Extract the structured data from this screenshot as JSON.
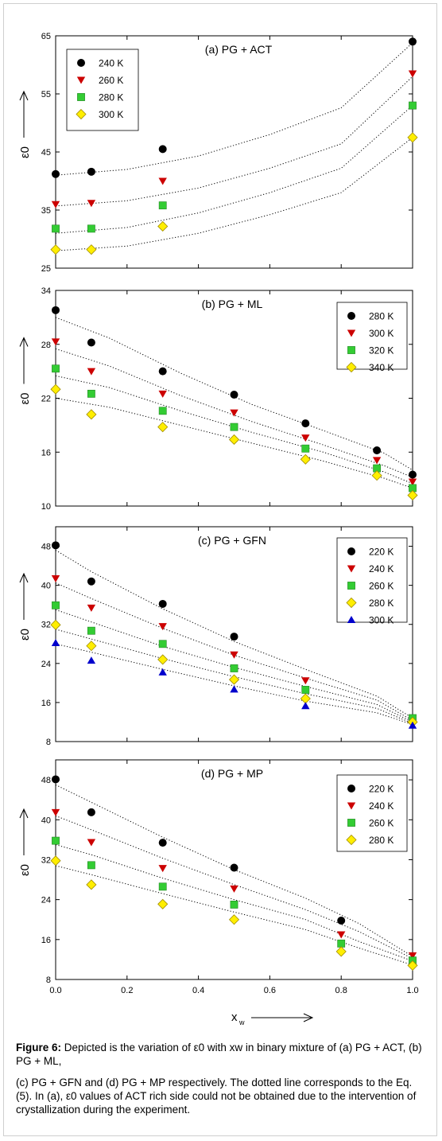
{
  "chart_data": [
    {
      "type": "scatter",
      "title": "(a) PG + ACT",
      "ylabel": "ε0",
      "xlim": [
        0,
        1
      ],
      "ylim": [
        25,
        65
      ],
      "yticks": [
        25,
        35,
        45,
        55,
        65
      ],
      "legend_position": "top-left",
      "series": [
        {
          "name": "240 K",
          "marker": "circle",
          "color": "#000000",
          "x": [
            0,
            0.1,
            0.3,
            1.0
          ],
          "values": [
            41.2,
            41.6,
            45.5,
            64.0
          ],
          "fit": [
            41.0,
            42.0,
            44.3,
            48.0,
            52.6,
            63.8
          ]
        },
        {
          "name": "260 K",
          "marker": "triangle-down",
          "color": "#cc0000",
          "x": [
            0,
            0.1,
            0.3,
            1.0
          ],
          "values": [
            36.0,
            36.2,
            40.0,
            58.5
          ],
          "fit": [
            35.7,
            36.6,
            38.8,
            42.2,
            46.4,
            58.0
          ]
        },
        {
          "name": "280 K",
          "marker": "square",
          "color": "#33cc33",
          "x": [
            0,
            0.1,
            0.3,
            1.0
          ],
          "values": [
            31.8,
            31.8,
            35.8,
            53.0
          ],
          "fit": [
            31.0,
            32.0,
            34.5,
            38.0,
            42.2,
            53.0
          ]
        },
        {
          "name": "300 K",
          "marker": "diamond",
          "color": "#ffee00",
          "x": [
            0,
            0.1,
            0.3,
            1.0
          ],
          "values": [
            28.2,
            28.2,
            32.2,
            47.5
          ],
          "fit": [
            28.0,
            28.8,
            31.0,
            34.2,
            38.0,
            47.5
          ]
        }
      ]
    },
    {
      "type": "scatter",
      "title": "(b) PG + ML",
      "ylabel": "ε0",
      "xlim": [
        0,
        1
      ],
      "ylim": [
        10,
        34
      ],
      "yticks": [
        10,
        16,
        22,
        28,
        34
      ],
      "legend_position": "top-right",
      "series": [
        {
          "name": "280 K",
          "marker": "circle",
          "color": "#000000",
          "x": [
            0,
            0.1,
            0.3,
            0.5,
            0.7,
            0.9,
            1.0
          ],
          "values": [
            31.8,
            28.2,
            25.0,
            22.4,
            19.2,
            16.2,
            13.5
          ],
          "fit": [
            31.0,
            28.7,
            24.8,
            21.3,
            18.4,
            15.9,
            14.0
          ]
        },
        {
          "name": "300 K",
          "marker": "triangle-down",
          "color": "#cc0000",
          "x": [
            0,
            0.1,
            0.3,
            0.5,
            0.7,
            0.9,
            1.0
          ],
          "values": [
            28.3,
            25.0,
            22.5,
            20.4,
            17.6,
            15.1,
            12.7
          ],
          "fit": [
            27.5,
            25.6,
            22.3,
            19.4,
            16.8,
            14.5,
            13.2
          ]
        },
        {
          "name": "320 K",
          "marker": "square",
          "color": "#33cc33",
          "x": [
            0,
            0.1,
            0.3,
            0.5,
            0.7,
            0.9,
            1.0
          ],
          "values": [
            25.3,
            22.5,
            20.6,
            18.8,
            16.4,
            14.2,
            12.0
          ],
          "fit": [
            24.5,
            23.2,
            20.6,
            18.2,
            16.0,
            13.8,
            12.5
          ]
        },
        {
          "name": "340 K",
          "marker": "diamond",
          "color": "#ffee00",
          "x": [
            0,
            0.1,
            0.3,
            0.5,
            0.7,
            0.9,
            1.0
          ],
          "values": [
            23.0,
            20.2,
            18.8,
            17.4,
            15.2,
            13.4,
            11.2
          ],
          "fit": [
            22.0,
            21.0,
            19.0,
            17.0,
            15.0,
            13.1,
            12.0
          ]
        }
      ]
    },
    {
      "type": "scatter",
      "title": "(c) PG + GFN",
      "ylabel": "ε0",
      "xlim": [
        0,
        1
      ],
      "ylim": [
        8,
        52
      ],
      "yticks": [
        8,
        16,
        24,
        32,
        40,
        48
      ],
      "legend_position": "top-right",
      "series": [
        {
          "name": "220 K",
          "marker": "circle",
          "color": "#000000",
          "x": [
            0,
            0.1,
            0.3,
            0.5
          ],
          "values": [
            48.2,
            40.8,
            36.2,
            29.5
          ],
          "fit": [
            47.2,
            42.8,
            35.2,
            28.5,
            22.8,
            17.3,
            12.8
          ]
        },
        {
          "name": "240 K",
          "marker": "triangle-down",
          "color": "#cc0000",
          "x": [
            0,
            0.1,
            0.3,
            0.5,
            0.7
          ],
          "values": [
            41.4,
            35.4,
            31.6,
            25.8,
            20.5
          ],
          "fit": [
            40.5,
            37.3,
            31.2,
            25.7,
            21.0,
            16.5,
            12.3
          ]
        },
        {
          "name": "260 K",
          "marker": "square",
          "color": "#33cc33",
          "x": [
            0,
            0.1,
            0.3,
            0.5,
            0.7,
            1.0
          ],
          "values": [
            35.9,
            30.7,
            28.0,
            23.0,
            18.6,
            12.8
          ],
          "fit": [
            35.0,
            32.5,
            27.5,
            23.2,
            19.3,
            15.6,
            12.0
          ]
        },
        {
          "name": "280 K",
          "marker": "diamond",
          "color": "#ffee00",
          "x": [
            0,
            0.1,
            0.3,
            0.5,
            0.7,
            1.0
          ],
          "values": [
            31.9,
            27.6,
            24.8,
            20.7,
            16.8,
            12.0
          ],
          "fit": [
            31.0,
            29.0,
            25.0,
            21.3,
            17.8,
            14.8,
            11.7
          ]
        },
        {
          "name": "300 K",
          "marker": "triangle-up",
          "color": "#0000cc",
          "x": [
            0,
            0.1,
            0.3,
            0.5,
            0.7,
            1.0
          ],
          "values": [
            28.2,
            24.6,
            22.2,
            18.7,
            15.3,
            11.3
          ],
          "fit": [
            28.0,
            26.3,
            22.8,
            19.4,
            16.3,
            13.9,
            11.5
          ]
        }
      ]
    },
    {
      "type": "scatter",
      "title": "(d) PG + MP",
      "ylabel": "ε0",
      "xlabel": "xw",
      "xlim": [
        0,
        1
      ],
      "xticks": [
        "0.0",
        "0.2",
        "0.4",
        "0.6",
        "0.8",
        "1.0"
      ],
      "ylim": [
        8,
        52
      ],
      "yticks": [
        8,
        16,
        24,
        32,
        40,
        48
      ],
      "legend_position": "top-right",
      "series": [
        {
          "name": "220 K",
          "marker": "circle",
          "color": "#000000",
          "x": [
            0,
            0.1,
            0.3,
            0.5,
            0.8
          ],
          "values": [
            48.1,
            41.5,
            35.4,
            30.4,
            19.8
          ],
          "fit": [
            47.0,
            43.5,
            36.5,
            30.0,
            24.3,
            19.2,
            12.6
          ]
        },
        {
          "name": "240 K",
          "marker": "triangle-down",
          "color": "#cc0000",
          "x": [
            0,
            0.1,
            0.3,
            0.5,
            0.8,
            1.0
          ],
          "values": [
            41.5,
            35.5,
            30.3,
            26.2,
            17.0,
            12.8
          ],
          "fit": [
            40.8,
            38.0,
            32.3,
            27.0,
            22.0,
            17.6,
            12.2
          ]
        },
        {
          "name": "260 K",
          "marker": "square",
          "color": "#33cc33",
          "x": [
            0,
            0.1,
            0.3,
            0.5,
            0.8,
            1.0
          ],
          "values": [
            35.8,
            30.9,
            26.6,
            23.0,
            15.2,
            11.8
          ],
          "fit": [
            35.0,
            33.0,
            28.3,
            24.0,
            20.0,
            15.6,
            11.7
          ]
        },
        {
          "name": "280 K",
          "marker": "diamond",
          "color": "#ffee00",
          "x": [
            0,
            0.1,
            0.3,
            0.5,
            0.8,
            1.0
          ],
          "values": [
            31.8,
            27.0,
            23.1,
            20.0,
            13.6,
            10.8
          ],
          "fit": [
            30.8,
            29.0,
            25.2,
            21.5,
            18.0,
            14.3,
            10.9
          ]
        }
      ]
    }
  ],
  "fit_x": [
    [
      0,
      0.2,
      0.4,
      0.6,
      0.8,
      1.0
    ],
    [
      0,
      0.15,
      0.35,
      0.55,
      0.75,
      0.92,
      1.0
    ],
    [
      0,
      0.1,
      0.3,
      0.5,
      0.7,
      0.9,
      1.0
    ],
    [
      0,
      0.1,
      0.3,
      0.5,
      0.7,
      0.85,
      1.0
    ]
  ],
  "caption": {
    "label": "Figure 6:",
    "line1": " Depicted is the variation of ε0 with xw in binary mixture of (a) PG + ACT, (b) PG + ML,",
    "line2": "(c) PG + GFN and (d) PG + MP respectively. The dotted line corresponds to the Eq. (5). In (a), ε0 values of ACT rich side could not be obtained due to the intervention of crystallization during the experiment."
  }
}
